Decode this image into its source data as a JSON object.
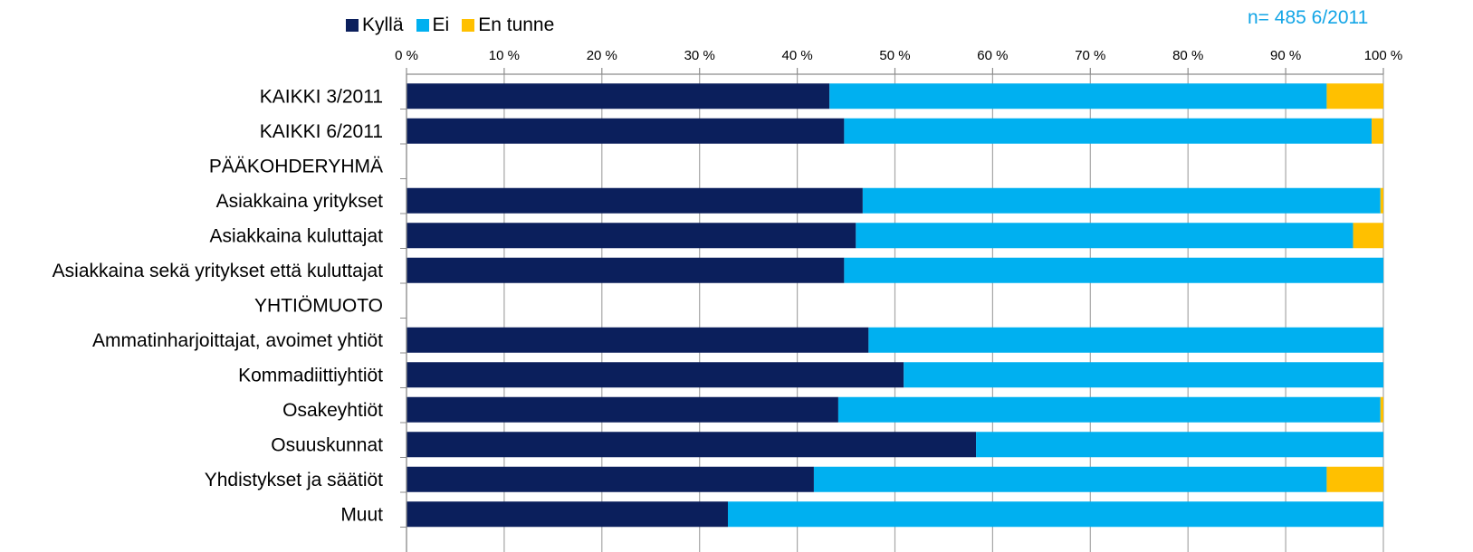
{
  "note": "n= 485  6/2011",
  "legend": [
    {
      "label": "Kyllä",
      "color": "#0b1f5c"
    },
    {
      "label": "Ei",
      "color": "#00b0f0"
    },
    {
      "label": "En tunne",
      "color": "#ffc000"
    }
  ],
  "chart_data": {
    "type": "bar",
    "orientation": "horizontal",
    "stacked": "percent",
    "x_ticks": [
      "0 %",
      "10 %",
      "20 %",
      "30 %",
      "40 %",
      "50 %",
      "60 %",
      "70 %",
      "80 %",
      "90 %",
      "100 %"
    ],
    "xlim": [
      0,
      100
    ],
    "grid": "vertical",
    "legend_position": "top",
    "categories": [
      "KAIKKI 3/2011",
      "KAIKKI 6/2011",
      "PÄÄKOHDERYHMÄ",
      "Asiakkaina yritykset",
      "Asiakkaina kuluttajat",
      "Asiakkaina sekä yritykset että kuluttajat",
      "YHTIÖMUOTO",
      "Ammatinharjoittajat, avoimet yhtiöt",
      "Kommadiittiyhtiöt",
      "Osakeyhtiöt",
      "Osuuskunnat",
      "Yhdistykset ja säätiöt",
      "Muut"
    ],
    "series": [
      {
        "name": "Kyllä",
        "color": "#0b1f5c",
        "values": [
          43.3,
          44.8,
          null,
          46.7,
          46.0,
          44.8,
          null,
          47.3,
          50.9,
          44.2,
          58.3,
          41.7,
          32.9
        ]
      },
      {
        "name": "Ei",
        "color": "#00b0f0",
        "values": [
          50.9,
          54.0,
          null,
          53.0,
          50.9,
          55.2,
          null,
          52.7,
          49.1,
          55.5,
          41.7,
          52.5,
          67.1
        ]
      },
      {
        "name": "En tunne",
        "color": "#ffc000",
        "values": [
          5.8,
          1.2,
          null,
          0.3,
          3.1,
          0.0,
          null,
          0.0,
          0.0,
          0.3,
          0.0,
          5.8,
          0.0
        ]
      }
    ]
  }
}
